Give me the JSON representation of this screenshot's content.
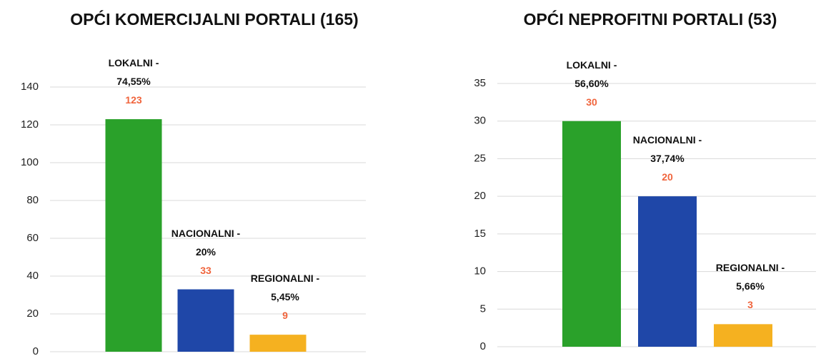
{
  "chart_data": [
    {
      "type": "bar",
      "title": "OPĆI KOMERCIJALNI PORTALI (165)",
      "categories": [
        "LOKALNI - 74,55%",
        "NACIONALNI - 20%",
        "REGIONALNI - 5,45%"
      ],
      "values": [
        123,
        33,
        9
      ],
      "colors": [
        "#2aa12a",
        "#1f47a8",
        "#f5b120"
      ],
      "ylim": [
        0,
        140
      ],
      "yticks": [
        0,
        20,
        40,
        60,
        80,
        100,
        120,
        140
      ],
      "grid": true
    },
    {
      "type": "bar",
      "title": "OPĆI NEPROFITNI PORTALI (53)",
      "categories": [
        "LOKALNI - 56,60%",
        "NACIONALNI - 37,74%",
        "REGIONALNI - 5,66%"
      ],
      "values": [
        30,
        20,
        3
      ],
      "colors": [
        "#2aa12a",
        "#1f47a8",
        "#f5b120"
      ],
      "ylim": [
        0,
        35
      ],
      "yticks": [
        0,
        5,
        10,
        15,
        20,
        25,
        30,
        35
      ],
      "grid": true
    }
  ]
}
